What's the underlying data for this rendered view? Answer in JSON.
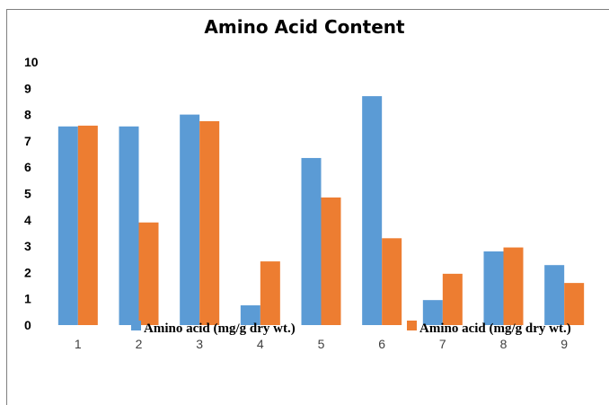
{
  "chart_data": {
    "type": "bar",
    "title": "Amino Acid Content",
    "xlabel": "",
    "ylabel": "",
    "categories": [
      "1",
      "2",
      "3",
      "4",
      "5",
      "6",
      "7",
      "8",
      "9"
    ],
    "yticks": [
      "0",
      "1",
      "2",
      "3",
      "4",
      "5",
      "6",
      "7",
      "8",
      "9",
      "10"
    ],
    "ylim": [
      0,
      10
    ],
    "grid": false,
    "legend_position": "bottom",
    "series": [
      {
        "name": "Amino acid (mg/g dry wt.)",
        "color": "#5b9bd5",
        "values": [
          7.55,
          7.55,
          8.0,
          0.75,
          6.35,
          8.7,
          0.95,
          2.8,
          2.28
        ]
      },
      {
        "name": "Amino acid (mg/g dry wt.)",
        "color": "#ed7d31",
        "values": [
          7.58,
          3.9,
          7.75,
          2.42,
          4.85,
          3.3,
          1.95,
          2.95,
          1.6
        ]
      }
    ]
  }
}
